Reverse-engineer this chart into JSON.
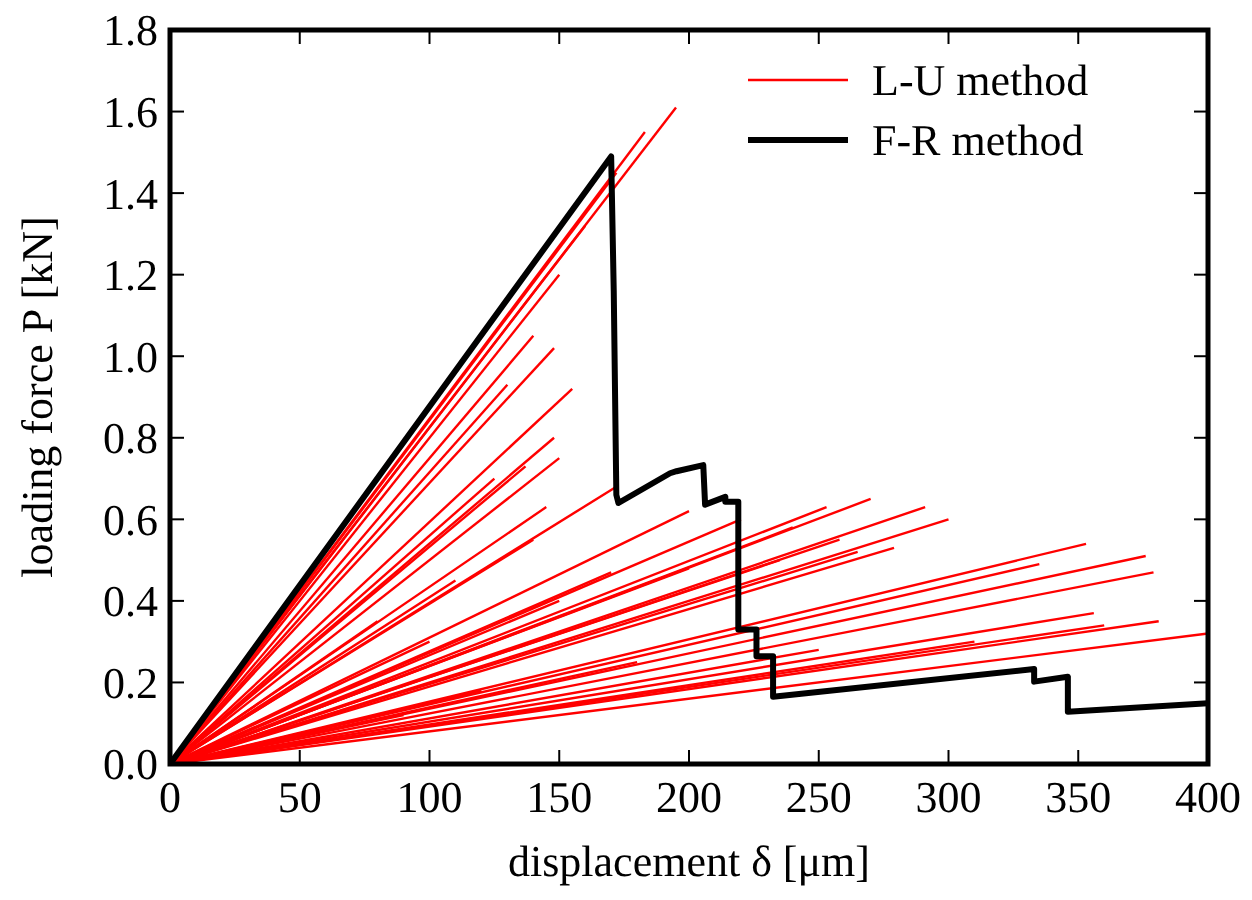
{
  "chart_data": {
    "type": "line",
    "xlabel": "displacement δ [μm]",
    "ylabel": "loading force P [kN]",
    "xlim": [
      0,
      400
    ],
    "ylim": [
      0,
      1.8
    ],
    "xticks": [
      0,
      50,
      100,
      150,
      200,
      250,
      300,
      350,
      400
    ],
    "yticks": [
      {
        "value": 0,
        "label": "0.0"
      },
      {
        "value": 0.2,
        "label": "0.2"
      },
      {
        "value": 0.4,
        "label": "0.4"
      },
      {
        "value": 0.6,
        "label": "0.6"
      },
      {
        "value": 0.8,
        "label": "0.8"
      },
      {
        "value": 1,
        "label": "1.0"
      },
      {
        "value": 1.2,
        "label": "1.2"
      },
      {
        "value": 1.4,
        "label": "1.4"
      },
      {
        "value": 1.6,
        "label": "1.6"
      },
      {
        "value": 1.8,
        "label": "1.8"
      }
    ],
    "grid": false,
    "legend": "top right",
    "line_style": "solid",
    "marker": "none",
    "series": [
      {
        "name": "L-U method",
        "color": "#ff0000",
        "x": [
          0,
          195
        ],
        "values": [
          0,
          1.61
        ]
      },
      {
        "color": "#ff0000",
        "x": [
          0,
          183
        ],
        "values": [
          0,
          1.55
        ]
      },
      {
        "color": "#ff0000",
        "x": [
          0,
          172
        ],
        "values": [
          0,
          1.45
        ]
      },
      {
        "color": "#ff0000",
        "x": [
          0,
          160
        ],
        "values": [
          0,
          1.32
        ]
      },
      {
        "color": "#ff0000",
        "x": [
          0,
          150
        ],
        "values": [
          0,
          1.2
        ]
      },
      {
        "color": "#ff0000",
        "x": [
          0,
          140
        ],
        "values": [
          0,
          1.05
        ]
      },
      {
        "color": "#ff0000",
        "x": [
          0,
          148
        ],
        "values": [
          0,
          1.02
        ]
      },
      {
        "color": "#ff0000",
        "x": [
          0,
          130
        ],
        "values": [
          0,
          0.93
        ]
      },
      {
        "color": "#ff0000",
        "x": [
          0,
          155
        ],
        "values": [
          0,
          0.92
        ]
      },
      {
        "color": "#ff0000",
        "x": [
          0,
          148
        ],
        "values": [
          0,
          0.8
        ]
      },
      {
        "color": "#ff0000",
        "x": [
          0,
          137
        ],
        "values": [
          0,
          0.73
        ]
      },
      {
        "color": "#ff0000",
        "x": [
          0,
          150
        ],
        "values": [
          0,
          0.75
        ]
      },
      {
        "color": "#ff0000",
        "x": [
          0,
          125
        ],
        "values": [
          0,
          0.7
        ]
      },
      {
        "color": "#ff0000",
        "x": [
          0,
          145
        ],
        "values": [
          0,
          0.63
        ]
      },
      {
        "color": "#ff0000",
        "x": [
          0,
          140
        ],
        "values": [
          0,
          0.55
        ]
      },
      {
        "color": "#ff0000",
        "x": [
          0,
          172
        ],
        "values": [
          0,
          0.68
        ]
      },
      {
        "color": "#ff0000",
        "x": [
          0,
          200
        ],
        "values": [
          0,
          0.62
        ]
      },
      {
        "color": "#ff0000",
        "x": [
          0,
          220
        ],
        "values": [
          0,
          0.6
        ]
      },
      {
        "color": "#ff0000",
        "x": [
          0,
          240
        ],
        "values": [
          0,
          0.58
        ]
      },
      {
        "color": "#ff0000",
        "x": [
          0,
          258
        ],
        "values": [
          0,
          0.55
        ]
      },
      {
        "color": "#ff0000",
        "x": [
          0,
          265
        ],
        "values": [
          0,
          0.52
        ]
      },
      {
        "color": "#ff0000",
        "x": [
          0,
          235
        ],
        "values": [
          0,
          0.5
        ]
      },
      {
        "color": "#ff0000",
        "x": [
          0,
          200
        ],
        "values": [
          0,
          0.48
        ]
      },
      {
        "color": "#ff0000",
        "x": [
          0,
          170
        ],
        "values": [
          0,
          0.47
        ]
      },
      {
        "color": "#ff0000",
        "x": [
          0,
          150
        ],
        "values": [
          0,
          0.4
        ]
      },
      {
        "color": "#ff0000",
        "x": [
          0,
          270
        ],
        "values": [
          0,
          0.65
        ]
      },
      {
        "color": "#ff0000",
        "x": [
          0,
          291
        ],
        "values": [
          0,
          0.63
        ]
      },
      {
        "color": "#ff0000",
        "x": [
          0,
          300
        ],
        "values": [
          0,
          0.6
        ]
      },
      {
        "color": "#ff0000",
        "x": [
          0,
          253
        ],
        "values": [
          0,
          0.63
        ]
      },
      {
        "color": "#ff0000",
        "x": [
          0,
          353
        ],
        "values": [
          0,
          0.54
        ]
      },
      {
        "color": "#ff0000",
        "x": [
          0,
          376
        ],
        "values": [
          0,
          0.51
        ]
      },
      {
        "color": "#ff0000",
        "x": [
          0,
          379
        ],
        "values": [
          0,
          0.47
        ]
      },
      {
        "color": "#ff0000",
        "x": [
          0,
          335
        ],
        "values": [
          0,
          0.49
        ]
      },
      {
        "color": "#ff0000",
        "x": [
          0,
          356
        ],
        "values": [
          0,
          0.37
        ]
      },
      {
        "color": "#ff0000",
        "x": [
          0,
          381
        ],
        "values": [
          0,
          0.35
        ]
      },
      {
        "color": "#ff0000",
        "x": [
          0,
          400
        ],
        "values": [
          0,
          0.32
        ]
      },
      {
        "color": "#ff0000",
        "x": [
          0,
          360
        ],
        "values": [
          0,
          0.34
        ]
      },
      {
        "color": "#ff0000",
        "x": [
          0,
          279
        ],
        "values": [
          0,
          0.53
        ]
      },
      {
        "color": "#ff0000",
        "x": [
          0,
          310
        ],
        "values": [
          0,
          0.3
        ]
      },
      {
        "color": "#ff0000",
        "x": [
          0,
          250
        ],
        "values": [
          0,
          0.28
        ]
      },
      {
        "color": "#ff0000",
        "x": [
          0,
          180
        ],
        "values": [
          0,
          0.25
        ]
      },
      {
        "color": "#ff0000",
        "x": [
          0,
          120
        ],
        "values": [
          0,
          0.18
        ]
      },
      {
        "color": "#ff0000",
        "x": [
          0,
          90
        ],
        "values": [
          0,
          0.12
        ]
      },
      {
        "color": "#ff0000",
        "x": [
          0,
          100
        ],
        "values": [
          0,
          0.3
        ]
      },
      {
        "color": "#ff0000",
        "x": [
          0,
          80
        ],
        "values": [
          0,
          0.35
        ]
      },
      {
        "color": "#ff0000",
        "x": [
          0,
          110
        ],
        "values": [
          0,
          0.45
        ]
      },
      {
        "name": "F-R method",
        "color": "#000000",
        "x": [
          0,
          170,
          171,
          172,
          172.8,
          192.7,
          195.2,
          205.5,
          206.2,
          214,
          214,
          219,
          219,
          226,
          226,
          232.4,
          232.4,
          333,
          333,
          346,
          346,
          400
        ],
        "values": [
          0,
          1.49,
          1.16,
          0.66,
          0.64,
          0.713,
          0.718,
          0.733,
          0.636,
          0.655,
          0.643,
          0.643,
          0.33,
          0.33,
          0.264,
          0.264,
          0.165,
          0.233,
          0.202,
          0.214,
          0.128,
          0.149
        ]
      }
    ]
  }
}
